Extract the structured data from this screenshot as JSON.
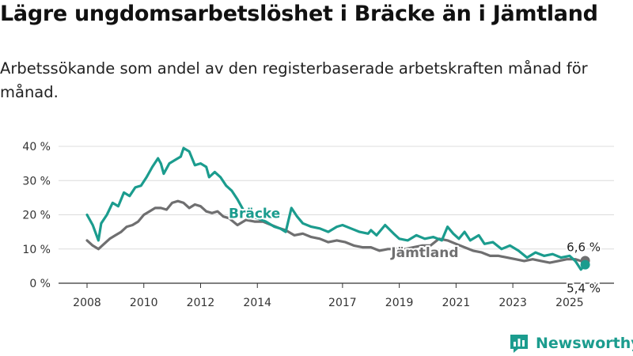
{
  "header": {
    "title": "Lägre ungdomsarbetslöshet i Bräcke än i Jämtland",
    "subtitle": "Arbetssökande som andel av den registerbaserade arbetskraften månad för månad."
  },
  "brand": {
    "name": "Newsworthy",
    "icon": "newsworthy-logo-icon",
    "color": "#1b9c8e"
  },
  "chart_data": {
    "type": "line",
    "title": "Lägre ungdomsarbetslöshet i Bräcke än i Jämtland",
    "subtitle": "Arbetssökande som andel av den registerbaserade arbetskraften månad för månad.",
    "xlabel": "",
    "ylabel": "",
    "xlim": [
      2008,
      2025.7
    ],
    "ylim": [
      0,
      40
    ],
    "x_ticks": [
      2008,
      2010,
      2012,
      2014,
      2017,
      2019,
      2021,
      2023,
      2025
    ],
    "x_tick_labels": [
      "2008",
      "2010",
      "2012",
      "2014",
      "2017",
      "2019",
      "2021",
      "2023",
      "2025"
    ],
    "y_ticks": [
      0,
      10,
      20,
      30,
      40
    ],
    "y_tick_labels": [
      "0 %",
      "10 %",
      "20 %",
      "30 %",
      "40 %"
    ],
    "grid": true,
    "legend": "inline labels",
    "series": [
      {
        "name": "Bräcke",
        "color": "#1b9c8e",
        "points": [
          [
            2008.0,
            20.0
          ],
          [
            2008.2,
            17.0
          ],
          [
            2008.4,
            12.5
          ],
          [
            2008.5,
            17.5
          ],
          [
            2008.7,
            20.0
          ],
          [
            2008.9,
            23.5
          ],
          [
            2009.1,
            22.5
          ],
          [
            2009.3,
            26.5
          ],
          [
            2009.5,
            25.5
          ],
          [
            2009.7,
            28.0
          ],
          [
            2009.9,
            28.5
          ],
          [
            2010.1,
            31.0
          ],
          [
            2010.3,
            34.0
          ],
          [
            2010.5,
            36.5
          ],
          [
            2010.6,
            35.0
          ],
          [
            2010.7,
            32.0
          ],
          [
            2010.9,
            35.0
          ],
          [
            2011.1,
            36.0
          ],
          [
            2011.3,
            37.0
          ],
          [
            2011.4,
            39.5
          ],
          [
            2011.6,
            38.5
          ],
          [
            2011.8,
            34.5
          ],
          [
            2012.0,
            35.0
          ],
          [
            2012.2,
            34.0
          ],
          [
            2012.3,
            31.0
          ],
          [
            2012.5,
            32.5
          ],
          [
            2012.7,
            31.0
          ],
          [
            2012.9,
            28.5
          ],
          [
            2013.1,
            27.0
          ],
          [
            2013.3,
            24.5
          ],
          [
            2013.5,
            21.5
          ],
          [
            2013.8,
            19.5
          ],
          [
            2014.0,
            19.0
          ],
          [
            2014.3,
            18.0
          ],
          [
            2014.6,
            16.5
          ],
          [
            2014.8,
            16.0
          ],
          [
            2015.0,
            15.0
          ],
          [
            2015.2,
            22.0
          ],
          [
            2015.4,
            19.5
          ],
          [
            2015.6,
            17.5
          ],
          [
            2015.9,
            16.5
          ],
          [
            2016.2,
            16.0
          ],
          [
            2016.5,
            15.0
          ],
          [
            2016.8,
            16.5
          ],
          [
            2017.0,
            17.0
          ],
          [
            2017.3,
            16.0
          ],
          [
            2017.6,
            15.0
          ],
          [
            2017.9,
            14.5
          ],
          [
            2018.0,
            15.5
          ],
          [
            2018.2,
            14.0
          ],
          [
            2018.5,
            17.0
          ],
          [
            2018.8,
            14.5
          ],
          [
            2019.0,
            13.0
          ],
          [
            2019.3,
            12.5
          ],
          [
            2019.6,
            14.0
          ],
          [
            2019.9,
            13.0
          ],
          [
            2020.2,
            13.5
          ],
          [
            2020.5,
            12.5
          ],
          [
            2020.7,
            16.5
          ],
          [
            2020.9,
            14.5
          ],
          [
            2021.1,
            13.0
          ],
          [
            2021.3,
            15.0
          ],
          [
            2021.5,
            12.5
          ],
          [
            2021.8,
            14.0
          ],
          [
            2022.0,
            11.5
          ],
          [
            2022.3,
            12.0
          ],
          [
            2022.6,
            10.0
          ],
          [
            2022.9,
            11.0
          ],
          [
            2023.2,
            9.5
          ],
          [
            2023.5,
            7.5
          ],
          [
            2023.8,
            9.0
          ],
          [
            2024.1,
            8.0
          ],
          [
            2024.4,
            8.5
          ],
          [
            2024.7,
            7.5
          ],
          [
            2025.0,
            8.0
          ],
          [
            2025.2,
            6.5
          ],
          [
            2025.4,
            4.0
          ],
          [
            2025.55,
            5.4
          ]
        ]
      },
      {
        "name": "Jämtland",
        "color": "#6f6f70",
        "points": [
          [
            2008.0,
            12.5
          ],
          [
            2008.2,
            11.0
          ],
          [
            2008.4,
            10.0
          ],
          [
            2008.6,
            11.5
          ],
          [
            2008.8,
            13.0
          ],
          [
            2009.0,
            14.0
          ],
          [
            2009.2,
            15.0
          ],
          [
            2009.4,
            16.5
          ],
          [
            2009.6,
            17.0
          ],
          [
            2009.8,
            18.0
          ],
          [
            2010.0,
            20.0
          ],
          [
            2010.2,
            21.0
          ],
          [
            2010.4,
            22.0
          ],
          [
            2010.6,
            22.0
          ],
          [
            2010.8,
            21.5
          ],
          [
            2011.0,
            23.5
          ],
          [
            2011.2,
            24.0
          ],
          [
            2011.4,
            23.5
          ],
          [
            2011.6,
            22.0
          ],
          [
            2011.8,
            23.0
          ],
          [
            2012.0,
            22.5
          ],
          [
            2012.2,
            21.0
          ],
          [
            2012.4,
            20.5
          ],
          [
            2012.6,
            21.0
          ],
          [
            2012.8,
            19.5
          ],
          [
            2013.0,
            19.0
          ],
          [
            2013.3,
            17.0
          ],
          [
            2013.6,
            18.5
          ],
          [
            2013.9,
            18.0
          ],
          [
            2014.2,
            18.0
          ],
          [
            2014.5,
            17.0
          ],
          [
            2014.8,
            16.0
          ],
          [
            2015.0,
            15.5
          ],
          [
            2015.3,
            14.0
          ],
          [
            2015.6,
            14.5
          ],
          [
            2015.9,
            13.5
          ],
          [
            2016.2,
            13.0
          ],
          [
            2016.5,
            12.0
          ],
          [
            2016.8,
            12.5
          ],
          [
            2017.1,
            12.0
          ],
          [
            2017.4,
            11.0
          ],
          [
            2017.7,
            10.5
          ],
          [
            2018.0,
            10.5
          ],
          [
            2018.3,
            9.5
          ],
          [
            2018.6,
            10.0
          ],
          [
            2018.9,
            10.0
          ],
          [
            2019.2,
            10.0
          ],
          [
            2019.5,
            10.5
          ],
          [
            2019.8,
            11.0
          ],
          [
            2020.1,
            11.0
          ],
          [
            2020.4,
            13.0
          ],
          [
            2020.7,
            12.5
          ],
          [
            2021.0,
            11.5
          ],
          [
            2021.3,
            10.5
          ],
          [
            2021.6,
            9.5
          ],
          [
            2021.9,
            9.0
          ],
          [
            2022.2,
            8.0
          ],
          [
            2022.5,
            8.0
          ],
          [
            2022.8,
            7.5
          ],
          [
            2023.1,
            7.0
          ],
          [
            2023.4,
            6.5
          ],
          [
            2023.7,
            7.0
          ],
          [
            2024.0,
            6.5
          ],
          [
            2024.3,
            6.0
          ],
          [
            2024.6,
            6.5
          ],
          [
            2024.9,
            7.0
          ],
          [
            2025.2,
            7.0
          ],
          [
            2025.4,
            6.5
          ],
          [
            2025.55,
            6.6
          ]
        ]
      }
    ],
    "annotations": [
      {
        "series": "Bräcke",
        "text": "Bräcke",
        "x": 2013.9,
        "y": 20.5
      },
      {
        "series": "Jämtland",
        "text": "Jämtland",
        "x": 2019.9,
        "y": 9.0
      },
      {
        "series": "Jämtland",
        "text": "6,6 %",
        "x": 2025.55,
        "y": 6.6
      },
      {
        "series": "Bräcke",
        "text": "5,4 %",
        "x": 2025.55,
        "y": 5.4
      }
    ]
  }
}
